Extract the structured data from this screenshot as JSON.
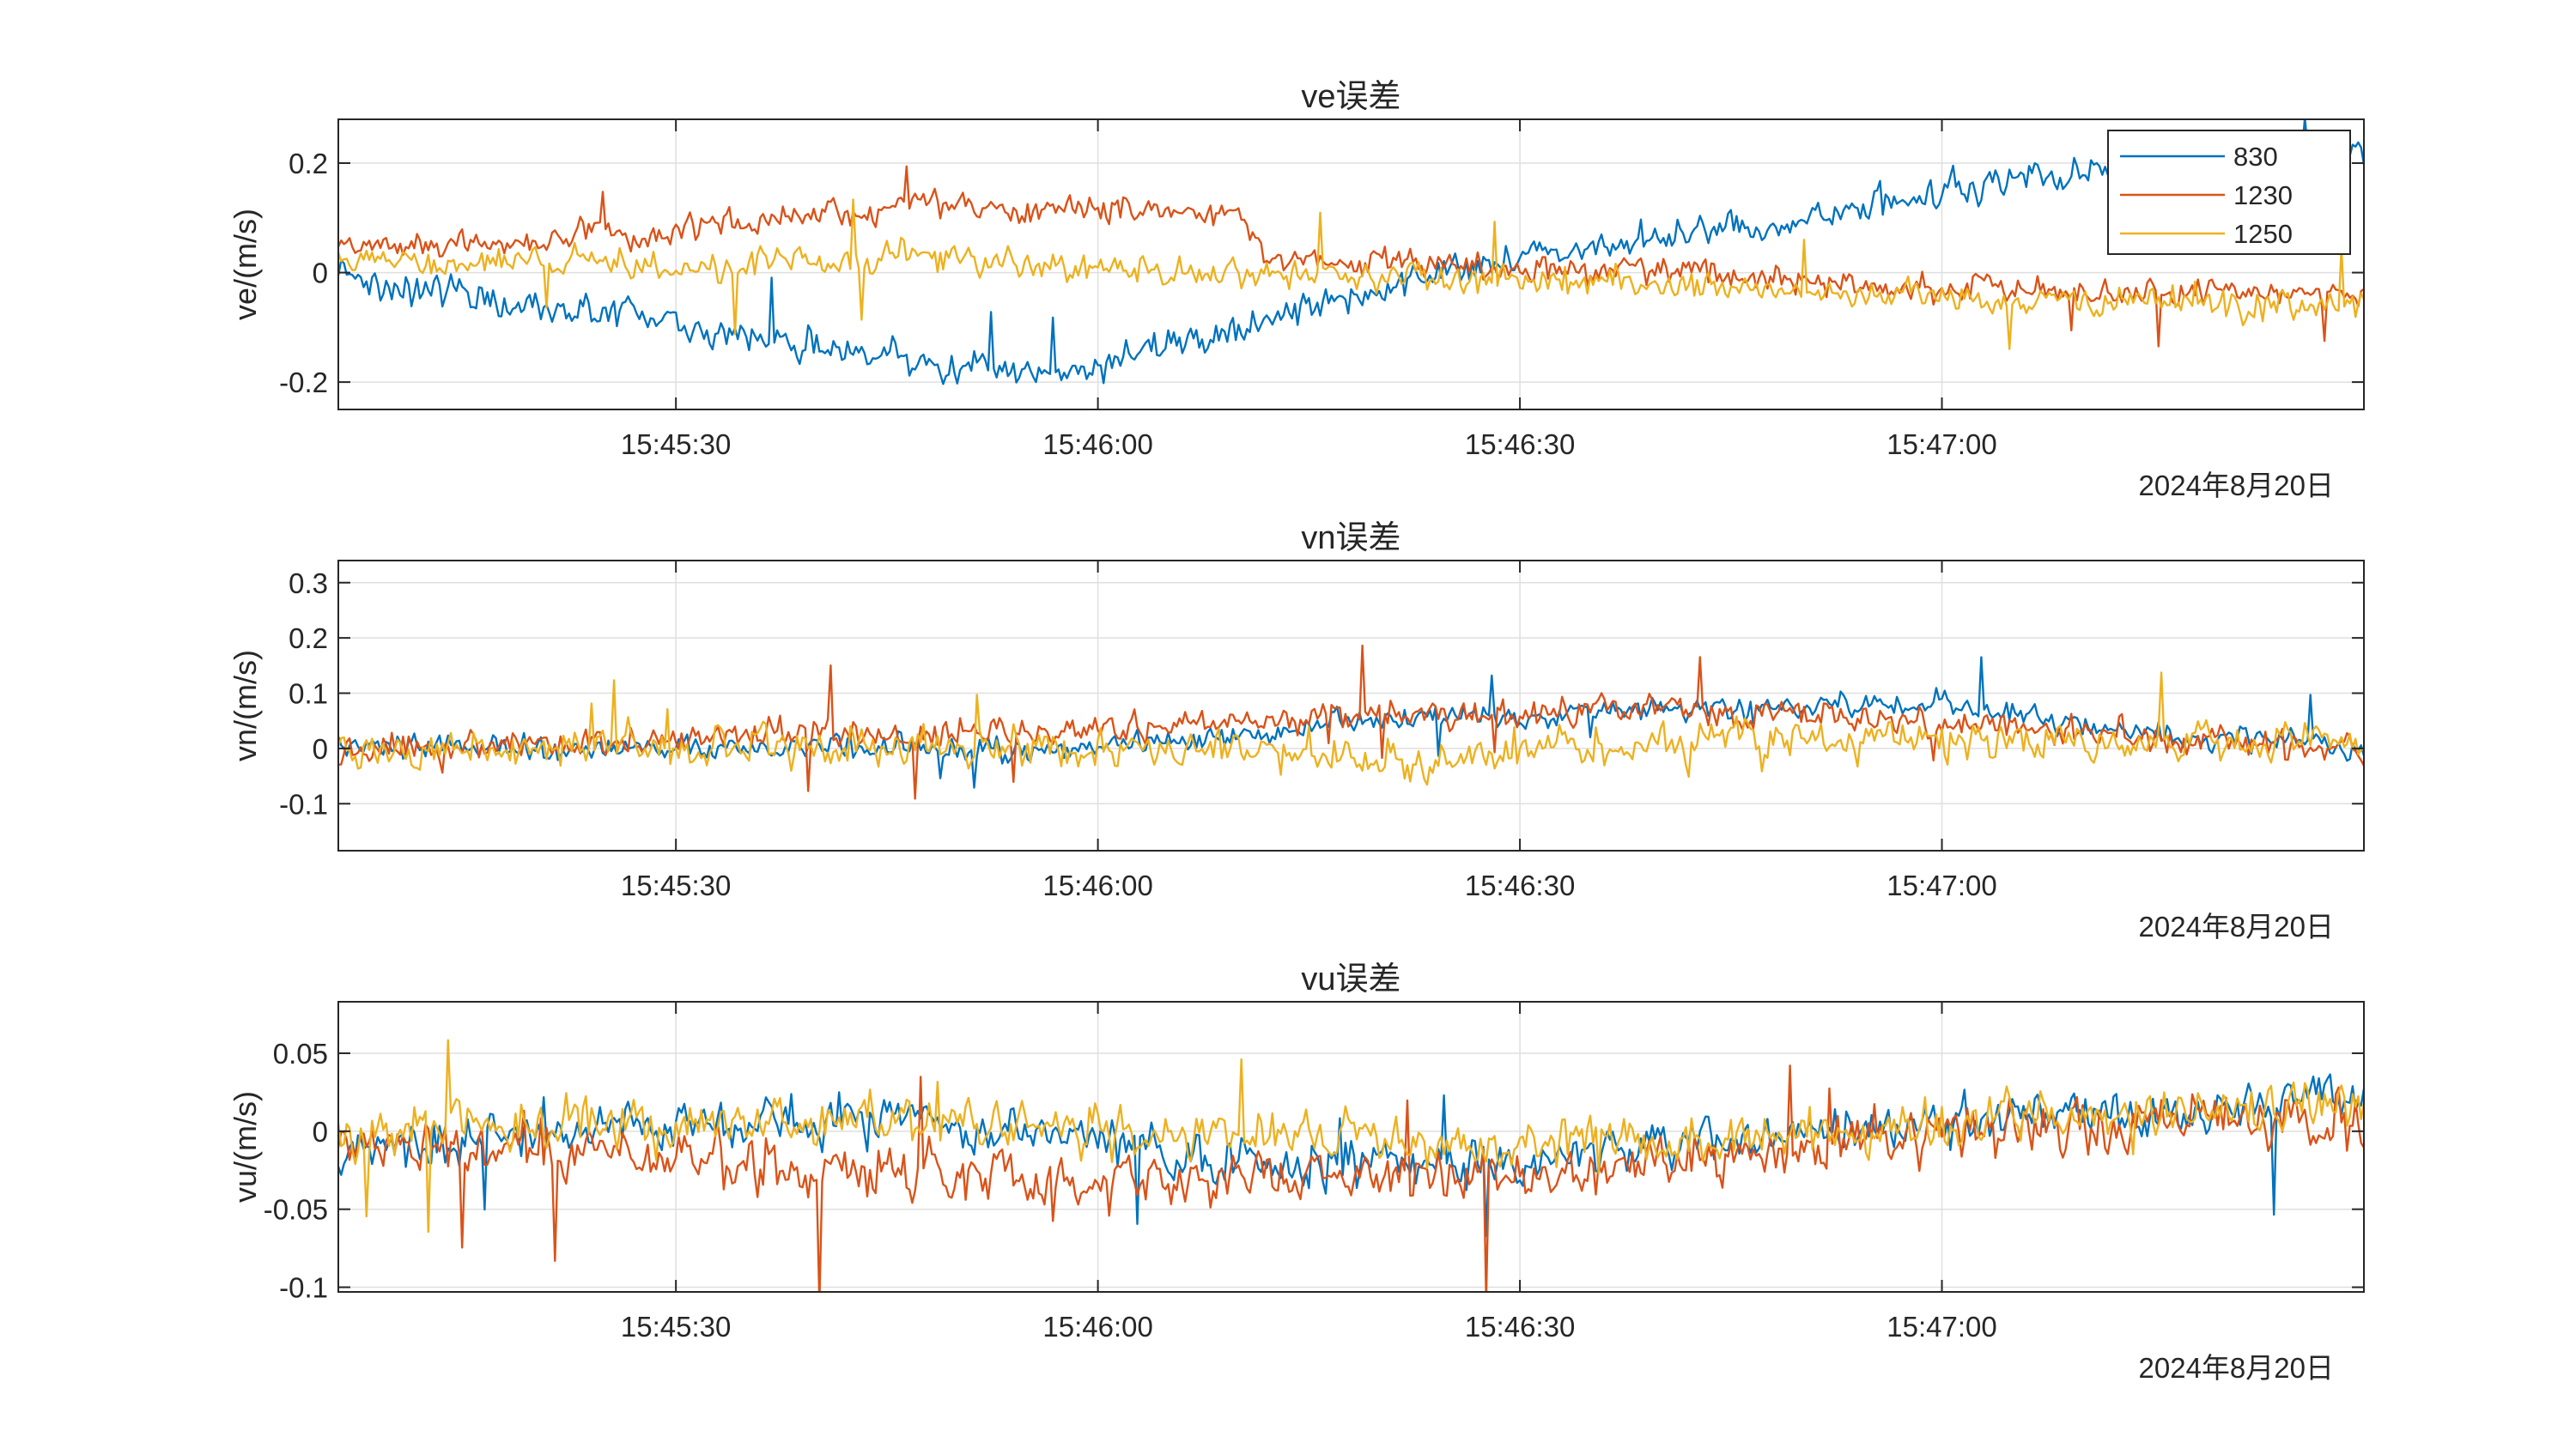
{
  "colors": {
    "s830": "#0072BD",
    "s1230": "#D95319",
    "s1250": "#EDB120",
    "axis": "#262626",
    "grid": "#dfdfdf"
  },
  "chart_data": [
    {
      "type": "line",
      "title": "ve误差",
      "ylabel": "ve/(m/s)",
      "xlabel": "",
      "date_label": "2024年8月20日",
      "x_range": [
        "15:45:06",
        "15:47:30"
      ],
      "x_ticks": [
        "15:45:30",
        "15:46:00",
        "15:46:30",
        "15:47:00"
      ],
      "ylim": [
        -0.25,
        0.28
      ],
      "y_ticks": [
        -0.2,
        0,
        0.2
      ],
      "y_tick_labels": [
        "-0.2",
        "0",
        "0.2"
      ],
      "grid": true,
      "legend": {
        "placement": "top-right",
        "entries": [
          "830",
          "1230",
          "1250"
        ]
      },
      "series": [
        {
          "name": "830",
          "color": "#0072BD",
          "noise": 0.022,
          "spike": 0.08,
          "trend": [
            [
              "15:45:06",
              -0.01
            ],
            [
              "15:45:20",
              -0.06
            ],
            [
              "15:45:50",
              -0.17
            ],
            [
              "15:45:58",
              -0.18
            ],
            [
              "15:46:10",
              -0.1
            ],
            [
              "15:46:20",
              -0.03
            ],
            [
              "15:46:30",
              0.03
            ],
            [
              "15:46:45",
              0.08
            ],
            [
              "15:47:00",
              0.15
            ],
            [
              "15:47:15",
              0.19
            ],
            [
              "15:47:30",
              0.22
            ]
          ]
        },
        {
          "name": "1230",
          "color": "#D95319",
          "noise": 0.018,
          "spike": 0.08,
          "trend": [
            [
              "15:45:06",
              0.04
            ],
            [
              "15:45:20",
              0.06
            ],
            [
              "15:45:50",
              0.12
            ],
            [
              "15:46:10",
              0.11
            ],
            [
              "15:46:12",
              0.02
            ],
            [
              "15:46:20",
              0.02
            ],
            [
              "15:46:40",
              0.0
            ],
            [
              "15:47:00",
              -0.03
            ],
            [
              "15:47:30",
              -0.04
            ]
          ]
        },
        {
          "name": "1250",
          "color": "#EDB120",
          "noise": 0.02,
          "spike": 0.09,
          "trend": [
            [
              "15:45:06",
              0.03
            ],
            [
              "15:45:30",
              0.01
            ],
            [
              "15:45:50",
              0.03
            ],
            [
              "15:46:05",
              0.0
            ],
            [
              "15:46:20",
              0.0
            ],
            [
              "15:46:40",
              -0.02
            ],
            [
              "15:47:00",
              -0.05
            ],
            [
              "15:47:30",
              -0.06
            ]
          ]
        }
      ]
    },
    {
      "type": "line",
      "title": "vn误差",
      "ylabel": "vn/(m/s)",
      "xlabel": "",
      "date_label": "2024年8月20日",
      "x_range": [
        "15:45:06",
        "15:47:30"
      ],
      "x_ticks": [
        "15:45:30",
        "15:46:00",
        "15:46:30",
        "15:47:00"
      ],
      "ylim": [
        -0.185,
        0.34
      ],
      "y_ticks": [
        -0.1,
        0,
        0.1,
        0.2,
        0.3
      ],
      "y_tick_labels": [
        "-0.1",
        "0",
        "0.1",
        "0.2",
        "0.3"
      ],
      "grid": true,
      "series": [
        {
          "name": "830",
          "color": "#0072BD",
          "noise": 0.016,
          "spike": 0.07,
          "trend": [
            [
              "15:45:06",
              0.0
            ],
            [
              "15:46:00",
              0.0
            ],
            [
              "15:46:10",
              0.02
            ],
            [
              "15:46:20",
              0.05
            ],
            [
              "15:46:40",
              0.07
            ],
            [
              "15:47:00",
              0.08
            ],
            [
              "15:47:10",
              0.04
            ],
            [
              "15:47:30",
              0.0
            ]
          ]
        },
        {
          "name": "1230",
          "color": "#D95319",
          "noise": 0.02,
          "spike": 0.08,
          "trend": [
            [
              "15:45:06",
              0.0
            ],
            [
              "15:45:50",
              0.03
            ],
            [
              "15:46:10",
              0.05
            ],
            [
              "15:46:40",
              0.07
            ],
            [
              "15:47:00",
              0.04
            ],
            [
              "15:47:30",
              0.0
            ]
          ]
        },
        {
          "name": "1250",
          "color": "#EDB120",
          "noise": 0.028,
          "spike": 0.1,
          "trend": [
            [
              "15:45:06",
              0.0
            ],
            [
              "15:46:10",
              0.0
            ],
            [
              "15:46:20",
              -0.02
            ],
            [
              "15:46:35",
              0.0
            ],
            [
              "15:47:00",
              0.02
            ],
            [
              "15:47:30",
              0.01
            ]
          ]
        }
      ]
    },
    {
      "type": "line",
      "title": "vu误差",
      "ylabel": "vu/(m/s)",
      "xlabel": "",
      "date_label": "2024年8月20日",
      "x_range": [
        "15:45:06",
        "15:47:30"
      ],
      "x_ticks": [
        "15:45:30",
        "15:46:00",
        "15:46:30",
        "15:47:00"
      ],
      "ylim": [
        -0.103,
        0.083
      ],
      "y_ticks": [
        -0.1,
        -0.05,
        0,
        0.05
      ],
      "y_tick_labels": [
        "-0.1",
        "-0.05",
        "0",
        "0.05"
      ],
      "grid": true,
      "series": [
        {
          "name": "830",
          "color": "#0072BD",
          "noise": 0.011,
          "spike": 0.045,
          "trend": [
            [
              "15:45:06",
              -0.01
            ],
            [
              "15:45:30",
              0.005
            ],
            [
              "15:45:50",
              0.005
            ],
            [
              "15:46:10",
              -0.02
            ],
            [
              "15:46:30",
              -0.02
            ],
            [
              "15:46:50",
              0.0
            ],
            [
              "15:47:10",
              0.01
            ],
            [
              "15:47:30",
              0.02
            ]
          ]
        },
        {
          "name": "1230",
          "color": "#D95319",
          "noise": 0.013,
          "spike": 0.055,
          "trend": [
            [
              "15:45:06",
              -0.005
            ],
            [
              "15:45:30",
              -0.015
            ],
            [
              "15:46:00",
              -0.03
            ],
            [
              "15:46:15",
              -0.03
            ],
            [
              "15:46:30",
              -0.03
            ],
            [
              "15:46:50",
              -0.01
            ],
            [
              "15:47:10",
              0.005
            ],
            [
              "15:47:30",
              0.01
            ]
          ]
        },
        {
          "name": "1250",
          "color": "#EDB120",
          "noise": 0.012,
          "spike": 0.05,
          "trend": [
            [
              "15:45:06",
              0.0
            ],
            [
              "15:45:40",
              0.005
            ],
            [
              "15:46:10",
              0.0
            ],
            [
              "15:46:30",
              -0.01
            ],
            [
              "15:47:00",
              0.005
            ],
            [
              "15:47:30",
              0.015
            ]
          ]
        }
      ]
    }
  ]
}
